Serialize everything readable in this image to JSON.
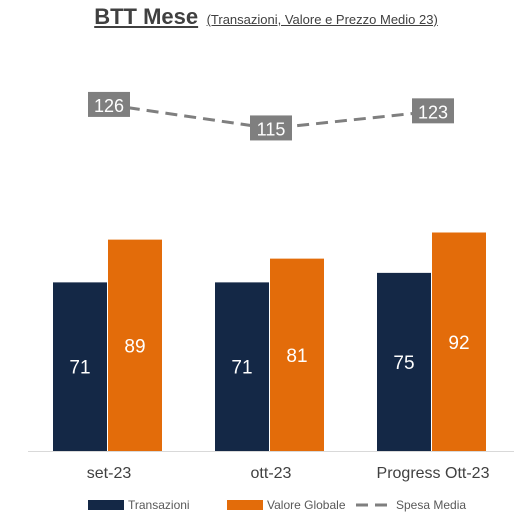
{
  "title": "BTT Mese",
  "subtitle": "(Transazioni, Valore e Prezzo Medio 23)",
  "chart_data": {
    "type": "bar",
    "categories": [
      "set-23",
      "ott-23",
      "Progress Ott-23"
    ],
    "series": [
      {
        "name": "Transazioni",
        "kind": "bar",
        "color": "#142846",
        "values": [
          71,
          71,
          75
        ]
      },
      {
        "name": "Valore Globale",
        "kind": "bar",
        "color": "#e36c0a",
        "values": [
          89,
          81,
          92
        ]
      },
      {
        "name": "Spesa Media",
        "kind": "line",
        "style": "dashed",
        "color": "#7f7f7f",
        "values": [
          126,
          115,
          123
        ]
      }
    ],
    "bar_axis_range": [
      0,
      120
    ],
    "line_axis_range": [
      60,
      140
    ],
    "grid": false,
    "legend_position": "bottom"
  }
}
